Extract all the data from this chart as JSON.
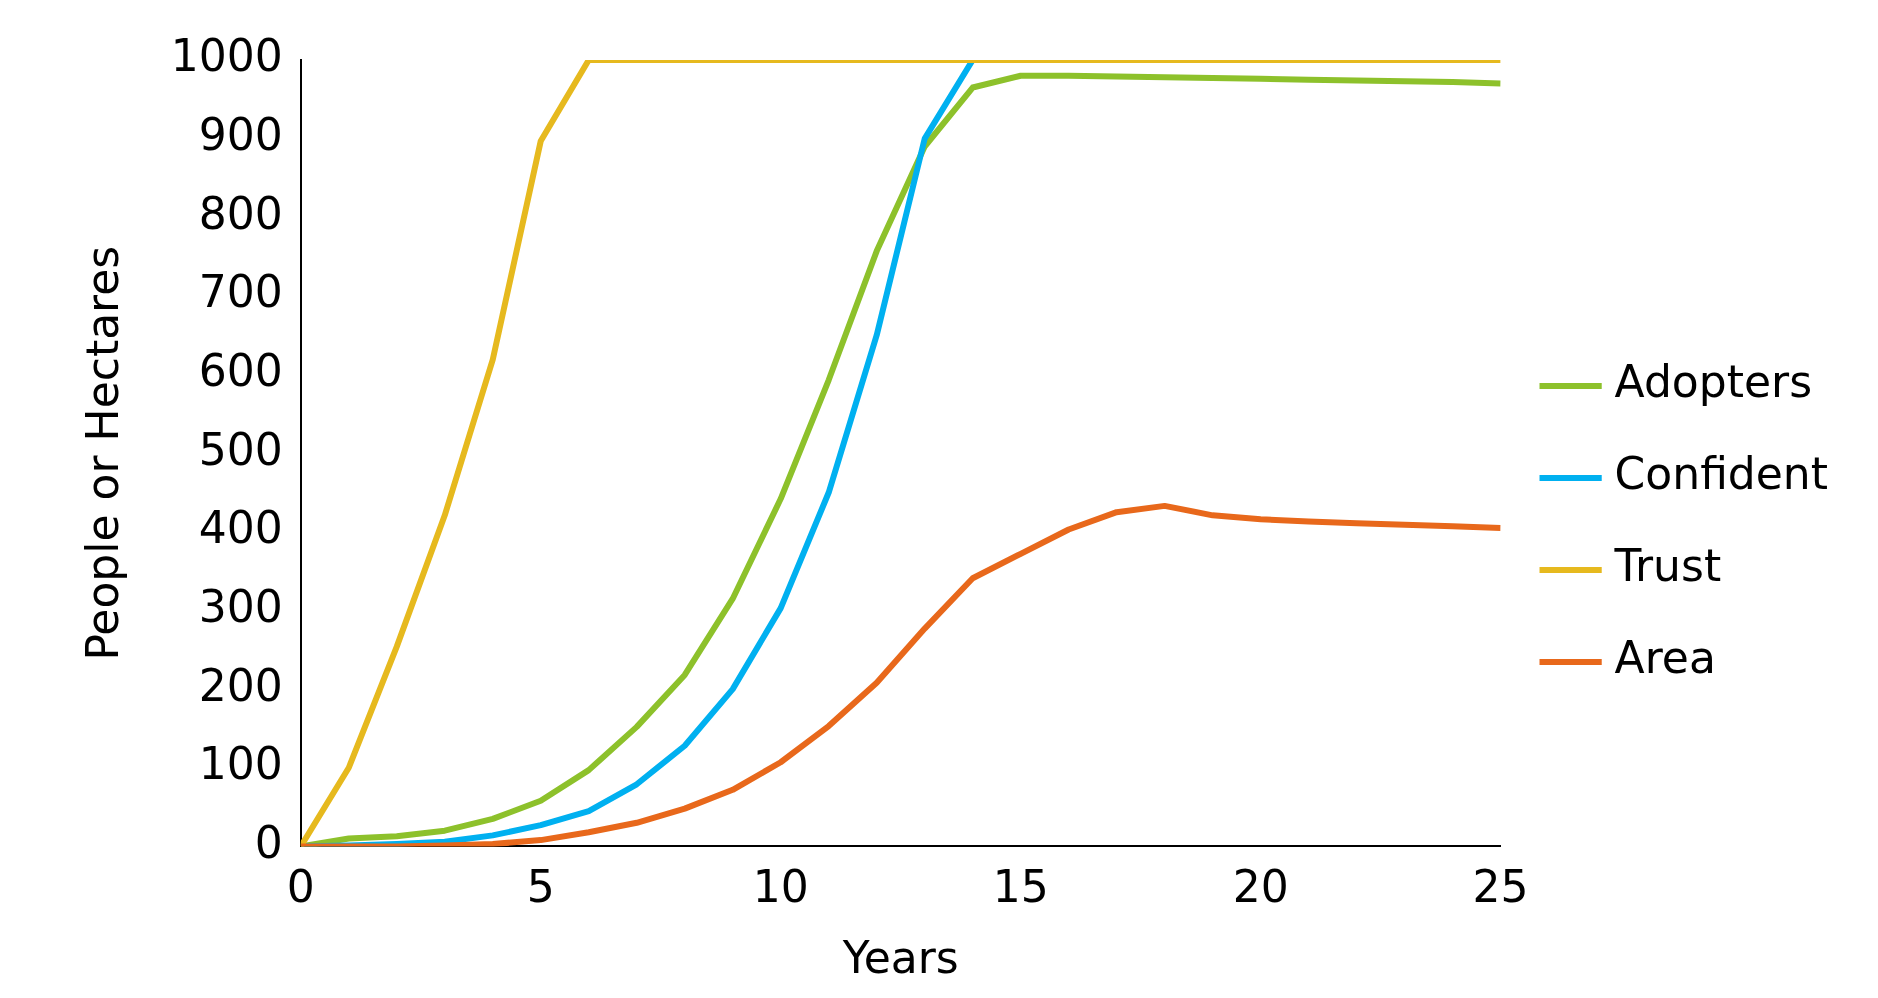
{
  "chart_data": {
    "type": "line",
    "xlabel": "Years",
    "ylabel": "People or Hectares",
    "x": [
      0,
      1,
      2,
      3,
      4,
      5,
      6,
      7,
      8,
      9,
      10,
      11,
      12,
      13,
      14,
      15,
      16,
      17,
      18,
      19,
      20,
      21,
      22,
      23,
      24,
      25
    ],
    "xlim": [
      0,
      25
    ],
    "xticks": [
      0,
      5,
      10,
      15,
      20,
      25
    ],
    "ylim": [
      0,
      1000
    ],
    "yticks": [
      0,
      100,
      200,
      300,
      400,
      500,
      600,
      700,
      800,
      900,
      1000
    ],
    "grid": false,
    "legend": "right",
    "marker": "none",
    "line_style": "solid",
    "series": [
      {
        "name": "Adopters",
        "color": "#8dc12b",
        "values": [
          0,
          10,
          13,
          20,
          35,
          58,
          97,
          152,
          218,
          315,
          442,
          593,
          757,
          890,
          965,
          980,
          980,
          979,
          978,
          977,
          976,
          975,
          974,
          973,
          972,
          970
        ]
      },
      {
        "name": "Confident",
        "color": "#00b0f0",
        "values": [
          0,
          1,
          3,
          6,
          14,
          27,
          45,
          79,
          128,
          200,
          303,
          450,
          650,
          900,
          1000,
          null,
          null,
          null,
          null,
          null,
          null,
          null,
          null,
          null,
          null,
          null
        ]
      },
      {
        "name": "Trust",
        "color": "#e6b91e",
        "values": [
          0,
          100,
          254,
          421,
          619,
          897,
          1000,
          1000,
          1000,
          1000,
          1000,
          1000,
          1000,
          1000,
          1000,
          1000,
          1000,
          1000,
          1000,
          1000,
          1000,
          1000,
          1000,
          1000,
          1000,
          1000
        ]
      },
      {
        "name": "Area",
        "color": "#e8681b",
        "values": [
          0,
          0,
          0,
          1,
          3,
          8,
          18,
          30,
          48,
          72,
          107,
          153,
          208,
          277,
          341,
          372,
          403,
          425,
          433,
          421,
          416,
          413,
          411,
          409,
          407,
          405
        ]
      }
    ]
  }
}
